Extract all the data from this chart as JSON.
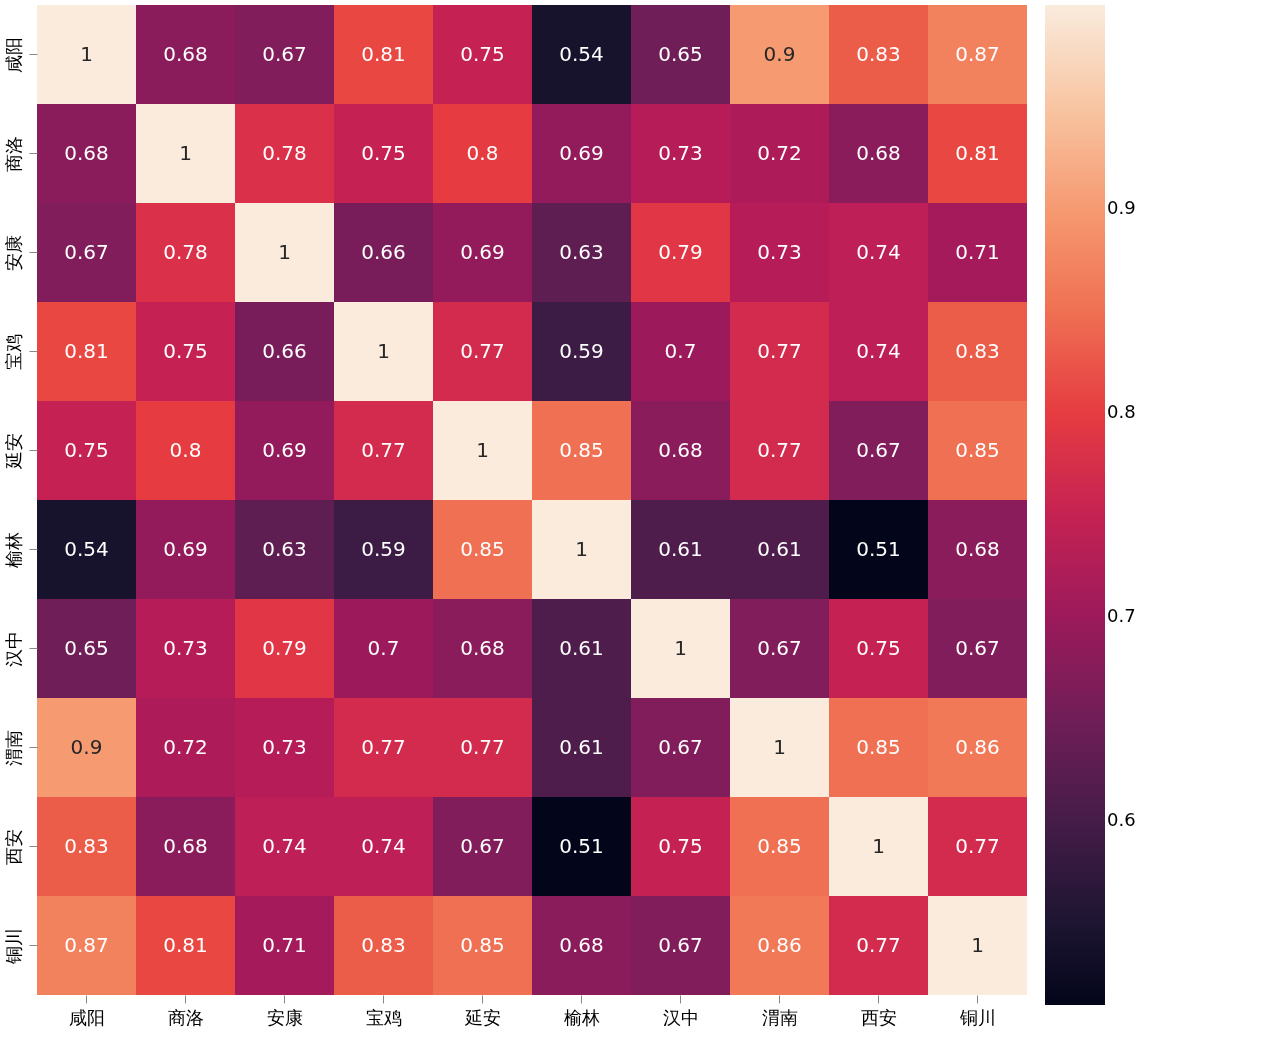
{
  "chart_data": {
    "type": "heatmap",
    "categories": [
      "咸阳",
      "商洛",
      "安康",
      "宝鸡",
      "延安",
      "榆林",
      "汉中",
      "渭南",
      "西安",
      "铜川"
    ],
    "y_categories": [
      "咸阳",
      "商洛",
      "安康",
      "宝鸡",
      "延安",
      "榆林",
      "汉中",
      "渭南",
      "西安",
      "铜川"
    ],
    "cells": [
      [
        1,
        0.68,
        0.67,
        0.81,
        0.75,
        0.54,
        0.65,
        0.9,
        0.83,
        0.87
      ],
      [
        0.68,
        1,
        0.78,
        0.75,
        0.8,
        0.69,
        0.73,
        0.72,
        0.68,
        0.81
      ],
      [
        0.67,
        0.78,
        1,
        0.66,
        0.69,
        0.63,
        0.79,
        0.73,
        0.74,
        0.71
      ],
      [
        0.81,
        0.75,
        0.66,
        1,
        0.77,
        0.59,
        0.7,
        0.77,
        0.74,
        0.83
      ],
      [
        0.75,
        0.8,
        0.69,
        0.77,
        1,
        0.85,
        0.68,
        0.77,
        0.67,
        0.85
      ],
      [
        0.54,
        0.69,
        0.63,
        0.59,
        0.85,
        1,
        0.61,
        0.61,
        0.51,
        0.68
      ],
      [
        0.65,
        0.73,
        0.79,
        0.7,
        0.68,
        0.61,
        1,
        0.67,
        0.75,
        0.67
      ],
      [
        0.9,
        0.72,
        0.73,
        0.77,
        0.77,
        0.61,
        0.67,
        1,
        0.85,
        0.86
      ],
      [
        0.83,
        0.68,
        0.74,
        0.74,
        0.67,
        0.51,
        0.75,
        0.85,
        1,
        0.77
      ],
      [
        0.87,
        0.81,
        0.71,
        0.83,
        0.85,
        0.68,
        0.67,
        0.86,
        0.77,
        1
      ]
    ],
    "clim": [
      0.51,
      1
    ],
    "cticks": [
      0.6,
      0.7,
      0.8,
      0.9
    ],
    "data_labels": true
  }
}
